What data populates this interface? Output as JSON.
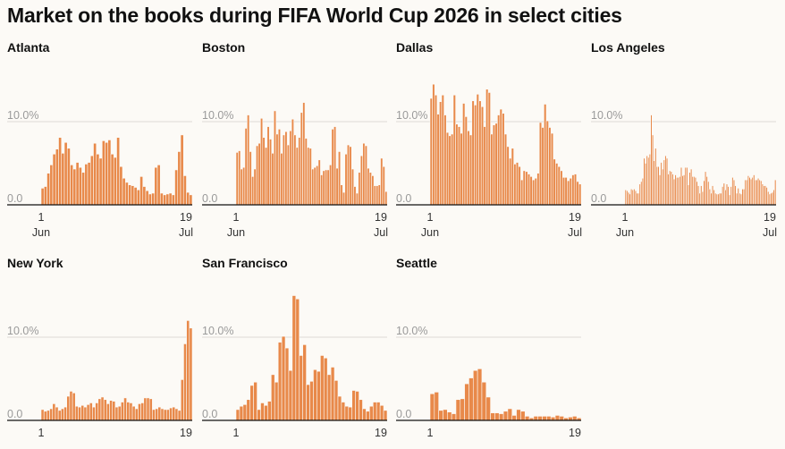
{
  "chart_data": {
    "type": "bar",
    "title": "Market on the books during FIFA World Cup 2026 in select cities",
    "ylim": [
      0,
      15
    ],
    "y_ticks": [
      {
        "value": 0,
        "label": "0.0"
      },
      {
        "value": 10,
        "label": "10.0%"
      }
    ],
    "x_ticks": [
      {
        "index": 0,
        "day": "1",
        "month": "Jun"
      },
      {
        "index": 48,
        "day": "19",
        "month": "Jul"
      }
    ],
    "bar_color": "#e8894a",
    "panels": [
      {
        "city": "Atlanta",
        "show_months": true,
        "values": [
          2.0,
          2.2,
          3.8,
          4.8,
          6.1,
          6.7,
          8.1,
          6.2,
          7.5,
          6.8,
          4.8,
          4.3,
          5.1,
          4.5,
          3.9,
          4.9,
          5.1,
          5.9,
          7.4,
          6.1,
          5.6,
          7.7,
          7.5,
          7.8,
          6.1,
          5.7,
          8.1,
          4.6,
          3.2,
          2.7,
          2.4,
          2.3,
          2.1,
          1.8,
          3.4,
          2.2,
          1.7,
          1.3,
          1.4,
          4.5,
          4.8,
          1.4,
          1.2,
          1.3,
          1.4,
          1.2,
          4.2,
          6.4,
          8.4,
          3.5,
          1.5,
          1.2
        ]
      },
      {
        "city": "Boston",
        "show_months": true,
        "values": [
          6.3,
          6.5,
          4.3,
          4.5,
          9.2,
          10.8,
          6.4,
          3.4,
          4.3,
          7.1,
          7.4,
          10.4,
          8.1,
          6.9,
          9.4,
          7.9,
          6.2,
          11.3,
          8.5,
          9.1,
          6.2,
          8.4,
          8.8,
          7.2,
          8.9,
          10.3,
          8.4,
          6.9,
          8.1,
          11.1,
          12.3,
          8.0,
          6.9,
          6.8,
          4.3,
          4.5,
          4.7,
          5.4,
          3.6,
          4.1,
          4.2,
          4.2,
          4.8,
          9.1,
          9.4,
          4.4,
          6.4,
          2.4,
          1.5,
          6.1,
          7.2,
          7.0,
          4.3,
          2.2,
          1.4,
          3.9,
          5.9,
          7.4,
          7.1,
          4.4,
          3.9,
          3.5,
          2.3,
          2.3,
          2.4,
          5.6,
          4.6,
          1.6
        ]
      },
      {
        "city": "Dallas",
        "show_months": true,
        "values": [
          12.8,
          14.5,
          13.2,
          10.9,
          12.4,
          13.2,
          10.8,
          8.7,
          8.3,
          8.5,
          13.2,
          9.7,
          9.4,
          8.6,
          12.2,
          10.6,
          8.9,
          8.4,
          12.5,
          12.0,
          13.3,
          12.5,
          11.8,
          9.4,
          13.9,
          13.5,
          8.5,
          9.6,
          9.8,
          10.8,
          11.5,
          11.0,
          8.5,
          7.0,
          5.6,
          6.8,
          4.9,
          5.1,
          4.6,
          3.0,
          4.1,
          4.0,
          3.7,
          3.4,
          3.0,
          3.2,
          3.8,
          9.9,
          9.3,
          12.1,
          10.1,
          9.3,
          8.6,
          5.5,
          5.0,
          4.6,
          4.1,
          3.3,
          3.3,
          2.9,
          3.2,
          3.6,
          3.7,
          2.8,
          2.5
        ]
      },
      {
        "city": "Los Angeles",
        "show_months": true,
        "values": [
          1.8,
          1.7,
          1.5,
          1.3,
          1.9,
          1.8,
          1.9,
          1.7,
          1.4,
          1.4,
          2.5,
          2.8,
          3.2,
          5.6,
          5.0,
          5.9,
          5.7,
          6.1,
          10.8,
          8.4,
          5.3,
          6.8,
          4.6,
          4.6,
          3.6,
          5.1,
          4.3,
          5.4,
          5.9,
          5.6,
          3.7,
          4.1,
          4.0,
          3.7,
          3.1,
          3.6,
          3.3,
          3.3,
          3.4,
          4.5,
          3.5,
          3.6,
          4.5,
          4.5,
          2.4,
          3.9,
          4.3,
          3.4,
          3.4,
          3.3,
          2.8,
          2.3,
          1.4,
          2.3,
          1.6,
          2.9,
          4.0,
          3.4,
          2.8,
          1.9,
          1.4,
          2.3,
          1.8,
          1.4,
          1.3,
          1.3,
          1.4,
          1.4,
          2.2,
          2.6,
          1.8,
          2.5,
          2.2,
          1.2,
          2.2,
          3.3,
          3.0,
          2.3,
          1.4,
          2.0,
          1.4,
          1.3,
          1.9,
          1.9,
          3.0,
          3.0,
          3.5,
          3.3,
          3.1,
          3.3,
          3.6,
          3.0,
          3.0,
          3.2,
          3.0,
          2.9,
          2.5,
          2.3,
          2.3,
          2.1,
          1.6,
          1.3,
          1.4,
          1.5,
          1.8,
          3.0
        ]
      },
      {
        "city": "New York",
        "show_months": false,
        "values": [
          1.3,
          1.1,
          1.2,
          1.4,
          2.0,
          1.6,
          1.2,
          1.4,
          1.6,
          2.9,
          3.5,
          3.3,
          1.7,
          1.6,
          1.8,
          1.6,
          1.9,
          2.1,
          1.6,
          2.1,
          2.6,
          2.8,
          2.5,
          2.0,
          2.4,
          2.3,
          1.6,
          1.7,
          2.2,
          2.7,
          2.2,
          2.1,
          1.7,
          1.4,
          2.0,
          2.1,
          2.7,
          2.7,
          2.6,
          1.3,
          1.4,
          1.6,
          1.4,
          1.3,
          1.3,
          1.5,
          1.6,
          1.4,
          1.2,
          4.9,
          9.2,
          12.0,
          11.1
        ]
      },
      {
        "city": "San Francisco",
        "show_months": false,
        "values": [
          1.3,
          1.7,
          1.9,
          2.5,
          4.2,
          4.6,
          1.3,
          2.1,
          1.8,
          2.3,
          5.5,
          4.6,
          9.4,
          10.1,
          8.7,
          6.0,
          15.0,
          14.6,
          7.8,
          9.1,
          4.3,
          4.7,
          6.1,
          5.9,
          7.8,
          7.5,
          5.5,
          6.4,
          4.8,
          2.9,
          2.2,
          1.7,
          1.6,
          3.6,
          3.5,
          2.5,
          1.4,
          1.1,
          1.7,
          2.2,
          2.2,
          1.8,
          1.2
        ]
      },
      {
        "city": "Seattle",
        "show_months": false,
        "values": [
          3.2,
          3.4,
          1.2,
          1.3,
          1.0,
          0.8,
          2.5,
          2.6,
          4.4,
          5.1,
          6.0,
          6.2,
          4.6,
          2.8,
          0.9,
          0.9,
          0.8,
          1.1,
          1.4,
          0.6,
          1.3,
          1.1,
          0.5,
          0.3,
          0.5,
          0.5,
          0.5,
          0.5,
          0.4,
          0.6,
          0.5,
          0.3,
          0.4,
          0.5,
          0.3
        ]
      }
    ]
  }
}
